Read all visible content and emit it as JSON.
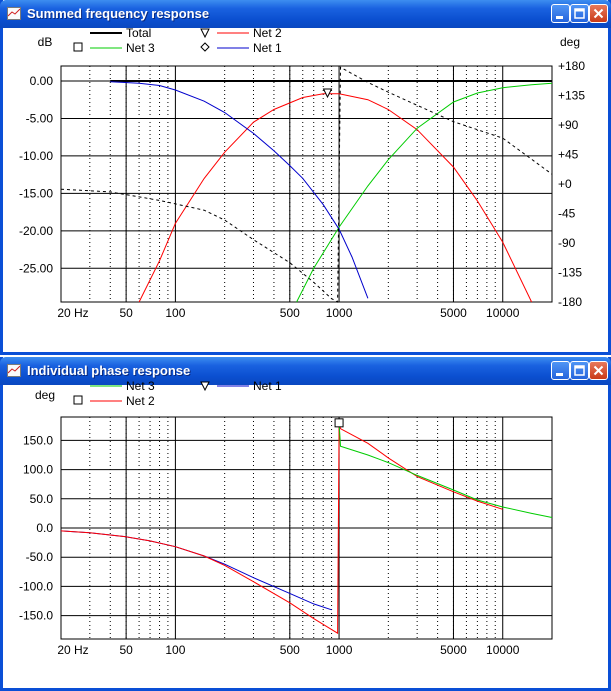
{
  "windows": [
    {
      "title": "Summed frequency response"
    },
    {
      "title": "Individual phase response"
    }
  ],
  "chart_data": [
    {
      "type": "line",
      "title": "Summed frequency response",
      "ylabel": "dB",
      "y2label": "deg",
      "xscale": "log",
      "xlim": [
        20,
        20000
      ],
      "ylim": [
        -29.5,
        2
      ],
      "y2lim": [
        -180,
        180
      ],
      "xticks": [
        "20 Hz",
        "50",
        "100",
        "500",
        "1000",
        "5000",
        "10000"
      ],
      "yticks": [
        "0.00",
        "-5.00",
        "-10.00",
        "-15.00",
        "-20.00",
        "-25.00"
      ],
      "y2ticks": [
        "+180",
        "+135",
        "+90",
        "+45",
        "+0",
        "-45",
        "-90",
        "-135",
        "-180"
      ],
      "grid": true,
      "legend": [
        "Total",
        "Net 2",
        "Net 3",
        "Net 1"
      ],
      "series": [
        {
          "name": "Total",
          "color": "#000000",
          "style": "solid",
          "x": [
            40,
            100,
            200,
            500,
            1000,
            2000,
            5000,
            10000,
            20000
          ],
          "y": [
            0,
            0,
            0,
            0,
            0,
            0,
            0,
            0,
            0
          ]
        },
        {
          "name": "Net 2",
          "color": "#ff0000",
          "style": "solid",
          "x": [
            60,
            80,
            100,
            150,
            200,
            300,
            400,
            600,
            800,
            1000,
            1500,
            2000,
            3000,
            5000,
            7000,
            10000,
            15000
          ],
          "y": [
            -29.5,
            -24,
            -19,
            -13,
            -9.5,
            -5.5,
            -3.8,
            -2.2,
            -1.7,
            -1.7,
            -2.5,
            -3.8,
            -6.5,
            -11.5,
            -16,
            -21.5,
            -29.5
          ]
        },
        {
          "name": "Net 3",
          "color": "#00cc00",
          "style": "solid",
          "x": [
            550,
            700,
            1000,
            1500,
            2000,
            3000,
            5000,
            7000,
            10000,
            15000,
            20000
          ],
          "y": [
            -29.5,
            -25,
            -19.5,
            -14,
            -10.5,
            -6.3,
            -2.8,
            -1.6,
            -0.9,
            -0.5,
            -0.3
          ]
        },
        {
          "name": "Net 1",
          "color": "#0000cc",
          "style": "solid",
          "x": [
            40,
            60,
            80,
            100,
            150,
            200,
            300,
            400,
            500,
            600,
            800,
            1000,
            1200,
            1500
          ],
          "y": [
            -0.1,
            -0.3,
            -0.6,
            -1.2,
            -2.7,
            -4.2,
            -7,
            -9.3,
            -11.3,
            -13,
            -16.5,
            -19.8,
            -23.5,
            -29
          ]
        },
        {
          "name": "Phase",
          "color": "#000000",
          "style": "dashed",
          "axis": "deg",
          "x": [
            20,
            40,
            80,
            150,
            200,
            300,
            500,
            700,
            900,
            980,
            1020,
            1500,
            2000,
            3000,
            5000,
            10000,
            20000
          ],
          "y": [
            -8,
            -12,
            -25,
            -40,
            -55,
            -85,
            -120,
            -150,
            -175,
            -180,
            178,
            155,
            140,
            120,
            95,
            70,
            15
          ]
        }
      ],
      "markers": [
        {
          "series": "Net 2",
          "shape": "triangle-down",
          "x": 850,
          "y": -1.6
        }
      ]
    },
    {
      "type": "line",
      "title": "Individual phase response",
      "ylabel": "deg",
      "xscale": "log",
      "xlim": [
        20,
        20000
      ],
      "ylim": [
        -190,
        190
      ],
      "xticks": [
        "20 Hz",
        "50",
        "100",
        "500",
        "1000",
        "5000",
        "10000"
      ],
      "yticks": [
        "150.0",
        "100.0",
        "50.0",
        "0.0",
        "-50.0",
        "-100.0",
        "-150.0"
      ],
      "grid": true,
      "legend": [
        "Net 3",
        "Net 1",
        "Net 2"
      ],
      "series": [
        {
          "name": "Net 1",
          "color": "#0000cc",
          "x": [
            20,
            30,
            50,
            70,
            100,
            150,
            200,
            300,
            500,
            700,
            900
          ],
          "y": [
            -5,
            -8,
            -15,
            -22,
            -32,
            -48,
            -62,
            -85,
            -112,
            -130,
            -140
          ]
        },
        {
          "name": "Net 2",
          "color": "#ff0000",
          "x": [
            20,
            30,
            50,
            70,
            100,
            150,
            200,
            300,
            500,
            700,
            980,
            1000,
            1020,
            1500,
            2000,
            3000,
            5000,
            7000,
            10000
          ],
          "y": [
            -5,
            -8,
            -15,
            -22,
            -32,
            -48,
            -64,
            -92,
            -128,
            -155,
            -180,
            180,
            170,
            145,
            120,
            88,
            62,
            46,
            32
          ]
        },
        {
          "name": "Net 3",
          "color": "#00cc00",
          "x": [
            1000,
            1020,
            1500,
            2000,
            3000,
            5000,
            7000,
            10000,
            15000,
            20000
          ],
          "y": [
            180,
            140,
            125,
            112,
            90,
            65,
            48,
            36,
            25,
            18
          ]
        }
      ],
      "markers": [
        {
          "series": "Net 2",
          "shape": "square",
          "x": 1000,
          "y": 180
        }
      ]
    }
  ]
}
